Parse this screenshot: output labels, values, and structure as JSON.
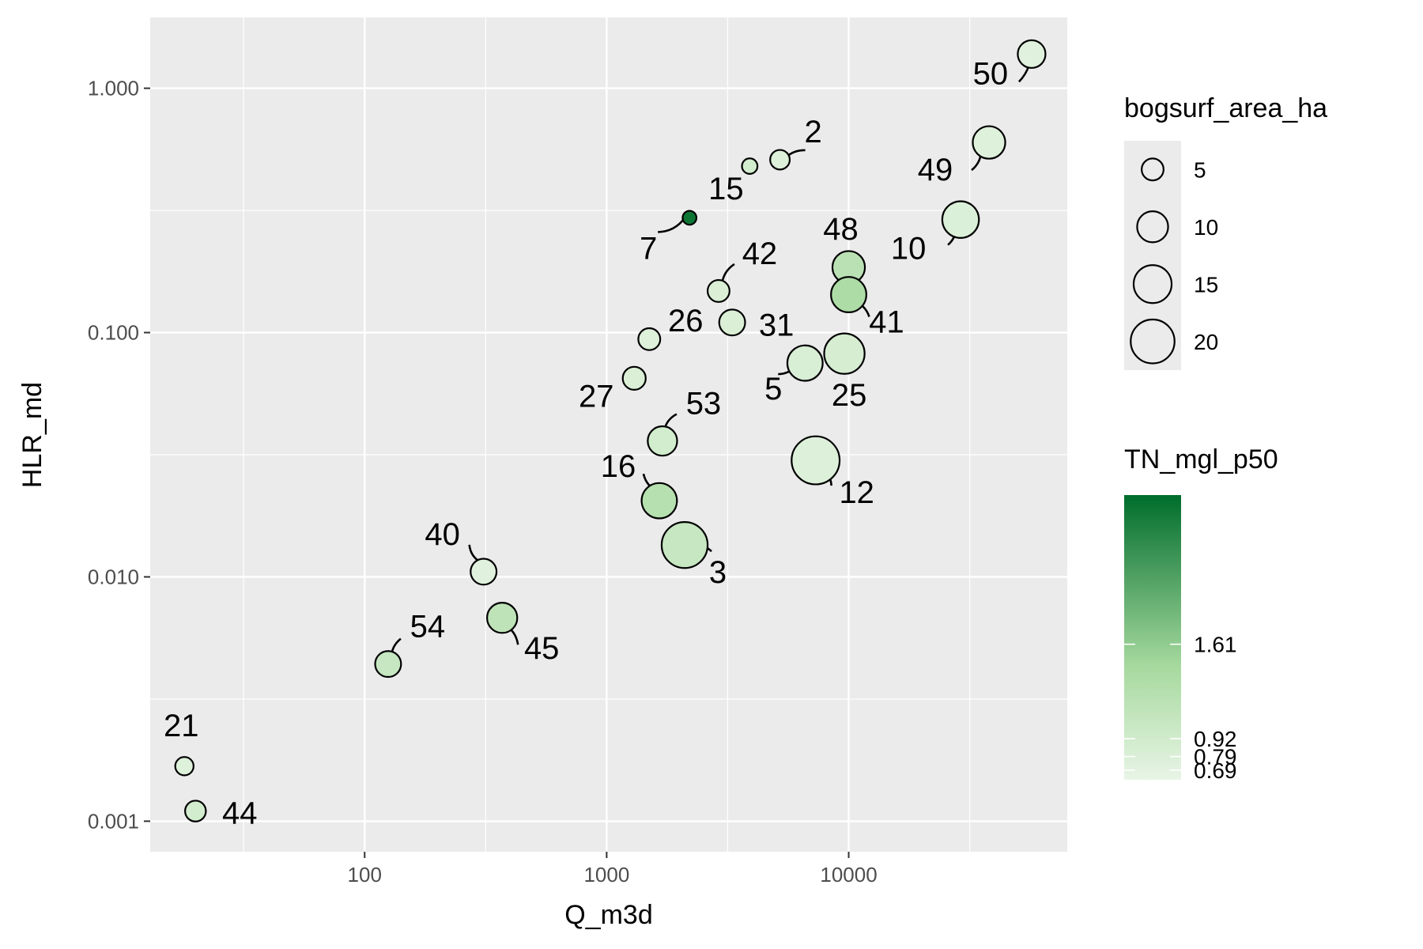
{
  "chart_data": {
    "type": "scatter",
    "xlabel": "Q_m3d",
    "ylabel": "HLR_md",
    "x_scale": "log10",
    "y_scale": "log10",
    "xlim": [
      13,
      80000
    ],
    "ylim": [
      0.00075,
      1.95
    ],
    "x_ticks": [
      {
        "value": 100,
        "label": "100"
      },
      {
        "value": 1000,
        "label": "1000"
      },
      {
        "value": 10000,
        "label": "10000"
      }
    ],
    "y_ticks": [
      {
        "value": 0.001,
        "label": "0.001"
      },
      {
        "value": 0.01,
        "label": "0.010"
      },
      {
        "value": 0.1,
        "label": "0.100"
      },
      {
        "value": 1,
        "label": "1.000"
      }
    ],
    "grid": true,
    "size_variable": "bogsurf_area_ha",
    "color_variable": "TN_mgl_p50",
    "points": [
      {
        "id": "50",
        "x": 57000,
        "y": 1.38,
        "size": 8,
        "tn": 0.72
      },
      {
        "id": "49",
        "x": 38000,
        "y": 0.6,
        "size": 11,
        "tn": 0.75
      },
      {
        "id": "10",
        "x": 29000,
        "y": 0.29,
        "size": 14,
        "tn": 0.78
      },
      {
        "id": "2",
        "x": 5200,
        "y": 0.51,
        "size": 4,
        "tn": 0.76
      },
      {
        "id": "15",
        "x": 3900,
        "y": 0.48,
        "size": 2.5,
        "tn": 0.9
      },
      {
        "id": "7",
        "x": 2200,
        "y": 0.295,
        "size": 2,
        "tn": 2.6
      },
      {
        "id": "48",
        "x": 10000,
        "y": 0.185,
        "size": 11,
        "tn": 1.2
      },
      {
        "id": "41",
        "x": 10000,
        "y": 0.143,
        "size": 13,
        "tn": 1.35
      },
      {
        "id": "42",
        "x": 2900,
        "y": 0.148,
        "size": 5,
        "tn": 0.8
      },
      {
        "id": "31",
        "x": 3300,
        "y": 0.11,
        "size": 7,
        "tn": 0.8
      },
      {
        "id": "26",
        "x": 1500,
        "y": 0.094,
        "size": 5,
        "tn": 0.75
      },
      {
        "id": "25",
        "x": 9600,
        "y": 0.082,
        "size": 17,
        "tn": 0.85
      },
      {
        "id": "5",
        "x": 6600,
        "y": 0.075,
        "size": 13,
        "tn": 0.82
      },
      {
        "id": "27",
        "x": 1300,
        "y": 0.065,
        "size": 5.5,
        "tn": 0.8
      },
      {
        "id": "53",
        "x": 1700,
        "y": 0.036,
        "size": 9,
        "tn": 0.9
      },
      {
        "id": "12",
        "x": 7300,
        "y": 0.03,
        "size": 24,
        "tn": 0.76
      },
      {
        "id": "16",
        "x": 1650,
        "y": 0.0205,
        "size": 13,
        "tn": 1.25
      },
      {
        "id": "3",
        "x": 2100,
        "y": 0.0135,
        "size": 22,
        "tn": 1.05
      },
      {
        "id": "40",
        "x": 310,
        "y": 0.0105,
        "size": 7,
        "tn": 0.72
      },
      {
        "id": "45",
        "x": 370,
        "y": 0.0068,
        "size": 9.5,
        "tn": 1.15
      },
      {
        "id": "54",
        "x": 125,
        "y": 0.0044,
        "size": 7,
        "tn": 1.05
      },
      {
        "id": "21",
        "x": 18,
        "y": 0.00168,
        "size": 3.5,
        "tn": 0.75
      },
      {
        "id": "44",
        "x": 20,
        "y": 0.0011,
        "size": 4.5,
        "tn": 0.9
      }
    ],
    "legend_size": {
      "title": "bogsurf_area_ha",
      "entries": [
        {
          "value": 5,
          "label": "5"
        },
        {
          "value": 10,
          "label": "10"
        },
        {
          "value": 15,
          "label": "15"
        },
        {
          "value": 20,
          "label": "20"
        }
      ]
    },
    "legend_color": {
      "title": "TN_mgl_p50",
      "domain": [
        0.62,
        2.7
      ],
      "low_color": "#e8f5e6",
      "high_color": "#006d2c",
      "ticks": [
        {
          "value": 0.69,
          "label": "0.69"
        },
        {
          "value": 0.79,
          "label": "0.79"
        },
        {
          "value": 0.92,
          "label": "0.92"
        },
        {
          "value": 1.61,
          "label": "1.61"
        }
      ]
    }
  }
}
